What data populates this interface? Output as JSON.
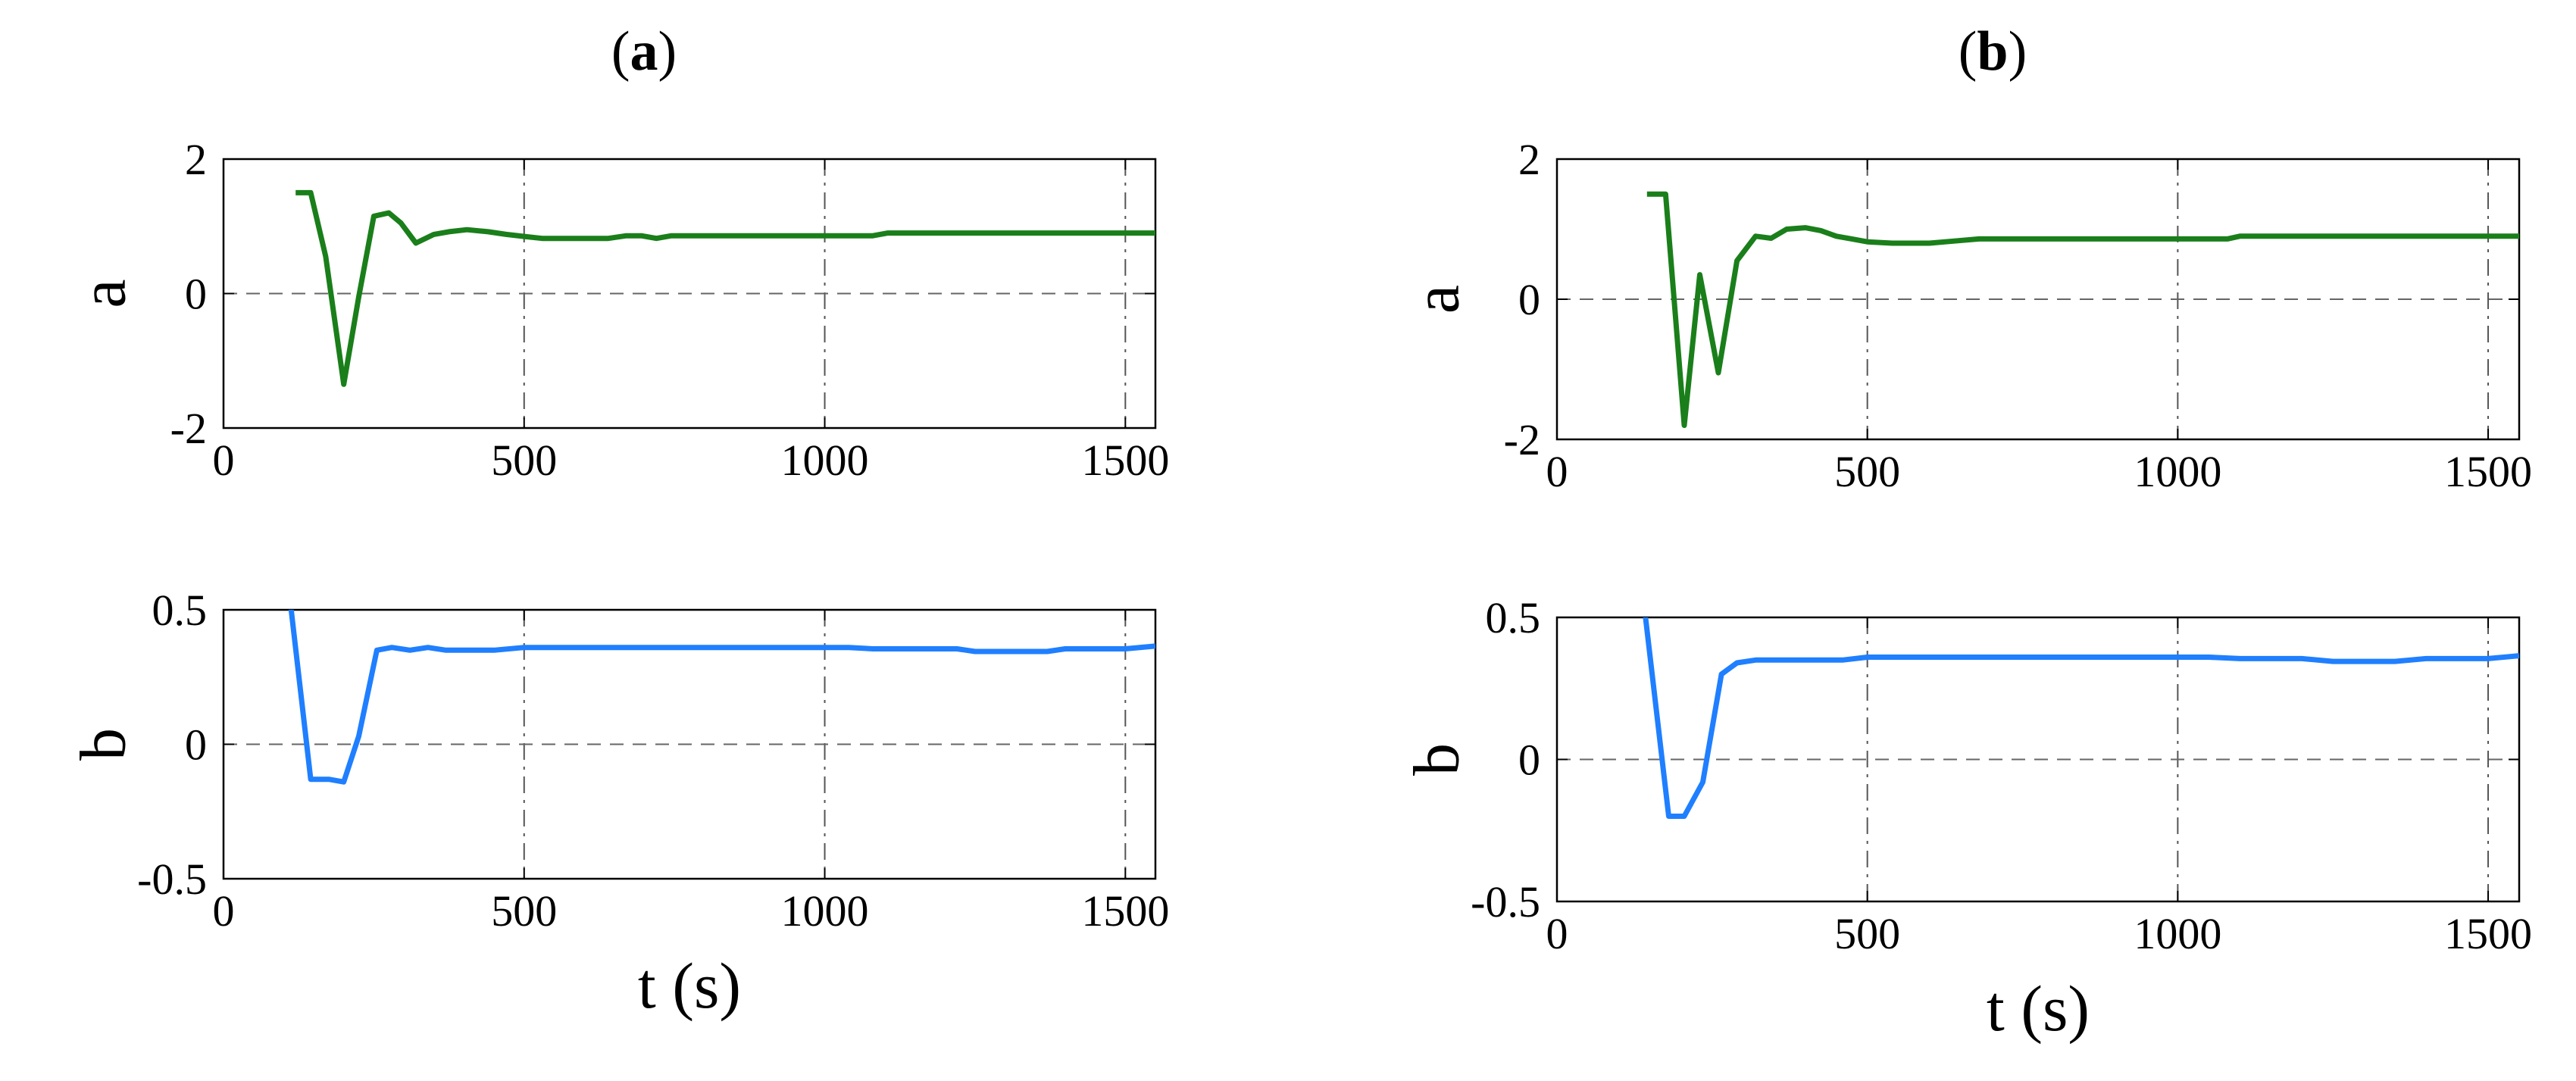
{
  "chart_data": [
    {
      "panel": "(a)",
      "panel_letter": "a",
      "subplots": [
        {
          "type": "line",
          "ylabel": "a",
          "xlabel": "",
          "xlim": [
            0,
            1550
          ],
          "ylim": [
            -2,
            2
          ],
          "x_ticks": [
            "0",
            "500",
            "1000",
            "1500"
          ],
          "y_ticks": [
            "2",
            "0",
            "-2"
          ],
          "grid": "dash-dot vertical, dashed horizontal",
          "color": "#1a7f1a",
          "x": [
            120,
            145,
            170,
            200,
            225,
            250,
            275,
            295,
            320,
            350,
            375,
            405,
            440,
            470,
            500,
            530,
            565,
            600,
            640,
            670,
            695,
            720,
            745,
            770,
            800,
            850,
            900,
            950,
            1000,
            1050,
            1080,
            1105,
            1150,
            1200,
            1300,
            1400,
            1500,
            1550
          ],
          "y": [
            1.5,
            1.5,
            0.55,
            -1.35,
            -0.05,
            1.15,
            1.2,
            1.05,
            0.75,
            0.88,
            0.92,
            0.95,
            0.92,
            0.88,
            0.85,
            0.82,
            0.82,
            0.82,
            0.82,
            0.86,
            0.86,
            0.82,
            0.86,
            0.86,
            0.86,
            0.86,
            0.86,
            0.86,
            0.86,
            0.86,
            0.86,
            0.9,
            0.9,
            0.9,
            0.9,
            0.9,
            0.9,
            0.9
          ]
        },
        {
          "type": "line",
          "ylabel": "b",
          "xlabel": "t (s)",
          "xlim": [
            0,
            1550
          ],
          "ylim": [
            -0.5,
            0.5
          ],
          "x_ticks": [
            "0",
            "500",
            "1000",
            "1500"
          ],
          "y_ticks": [
            "0.5",
            "0",
            "-0.5"
          ],
          "grid": "dash-dot vertical, dashed horizontal",
          "color": "#1f7fff",
          "x": [
            110,
            145,
            175,
            200,
            225,
            255,
            280,
            310,
            340,
            370,
            410,
            450,
            500,
            600,
            700,
            800,
            900,
            1000,
            1040,
            1080,
            1150,
            1220,
            1250,
            1300,
            1370,
            1400,
            1450,
            1500,
            1550
          ],
          "y": [
            0.55,
            -0.13,
            -0.13,
            -0.14,
            0.03,
            0.35,
            0.36,
            0.35,
            0.36,
            0.35,
            0.35,
            0.35,
            0.36,
            0.36,
            0.36,
            0.36,
            0.36,
            0.36,
            0.36,
            0.355,
            0.355,
            0.355,
            0.345,
            0.345,
            0.345,
            0.355,
            0.355,
            0.355,
            0.365
          ]
        }
      ]
    },
    {
      "panel": "(b)",
      "panel_letter": "b",
      "subplots": [
        {
          "type": "line",
          "ylabel": "a",
          "xlabel": "",
          "xlim": [
            0,
            1550
          ],
          "ylim": [
            -2,
            2
          ],
          "x_ticks": [
            "0",
            "500",
            "1000",
            "1500"
          ],
          "y_ticks": [
            "2",
            "0",
            "-2"
          ],
          "grid": "dash-dot vertical, dashed horizontal",
          "color": "#1a7f1a",
          "x": [
            145,
            175,
            205,
            230,
            260,
            290,
            320,
            345,
            370,
            400,
            425,
            450,
            475,
            500,
            540,
            600,
            640,
            680,
            720,
            800,
            900,
            1000,
            1080,
            1100,
            1200,
            1300,
            1400,
            1500,
            1550
          ],
          "y": [
            1.5,
            1.5,
            -1.8,
            0.35,
            -1.05,
            0.55,
            0.9,
            0.87,
            1.0,
            1.02,
            0.98,
            0.9,
            0.86,
            0.82,
            0.8,
            0.8,
            0.83,
            0.86,
            0.86,
            0.86,
            0.86,
            0.86,
            0.86,
            0.9,
            0.9,
            0.9,
            0.9,
            0.9,
            0.9
          ]
        },
        {
          "type": "line",
          "ylabel": "b",
          "xlabel": "t (s)",
          "xlim": [
            0,
            1550
          ],
          "ylim": [
            -0.5,
            0.5
          ],
          "x_ticks": [
            "0",
            "500",
            "1000",
            "1500"
          ],
          "y_ticks": [
            "0.5",
            "0",
            "-0.5"
          ],
          "grid": "dash-dot vertical, dashed horizontal",
          "color": "#1f7fff",
          "x": [
            140,
            180,
            205,
            235,
            265,
            290,
            320,
            360,
            400,
            460,
            500,
            600,
            700,
            800,
            900,
            1000,
            1050,
            1100,
            1150,
            1200,
            1250,
            1300,
            1350,
            1400,
            1450,
            1500,
            1550
          ],
          "y": [
            0.55,
            -0.2,
            -0.2,
            -0.08,
            0.3,
            0.34,
            0.35,
            0.35,
            0.35,
            0.35,
            0.36,
            0.36,
            0.36,
            0.36,
            0.36,
            0.36,
            0.36,
            0.355,
            0.355,
            0.355,
            0.345,
            0.345,
            0.345,
            0.355,
            0.355,
            0.355,
            0.365
          ]
        }
      ]
    }
  ]
}
